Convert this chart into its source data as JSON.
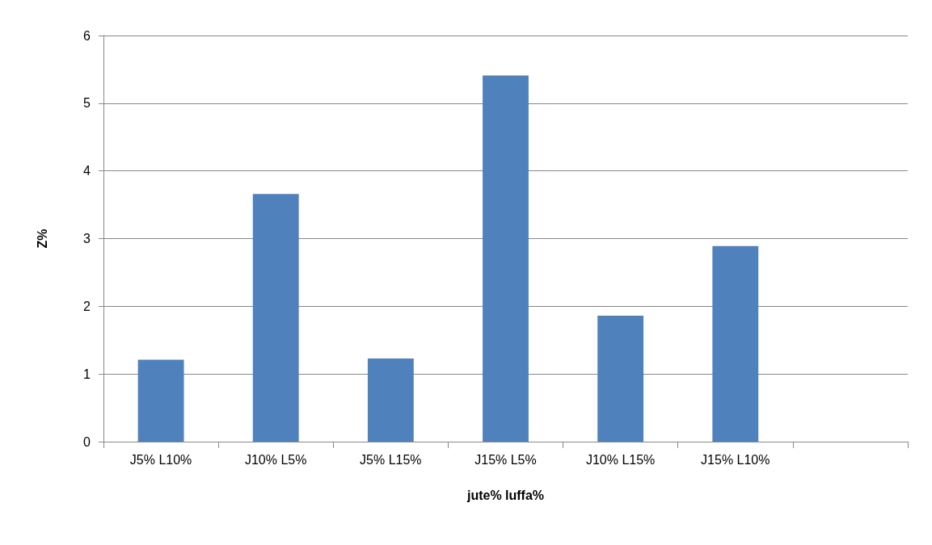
{
  "chart_data": {
    "type": "bar",
    "xlabel": "jute% luffa%",
    "ylabel": "Z%",
    "categories": [
      "J5% L10%",
      "J10% L5%",
      "J5% L15%",
      "J15% L5%",
      "J10% L15%",
      "J15% L10%",
      null
    ],
    "values": [
      1.21,
      3.66,
      1.23,
      5.41,
      1.86,
      2.89,
      null
    ],
    "color": "#4f81bd",
    "ylim": [
      0,
      6
    ],
    "yticks": [
      0,
      1,
      2,
      3,
      4,
      5,
      6
    ],
    "grid": "y"
  }
}
